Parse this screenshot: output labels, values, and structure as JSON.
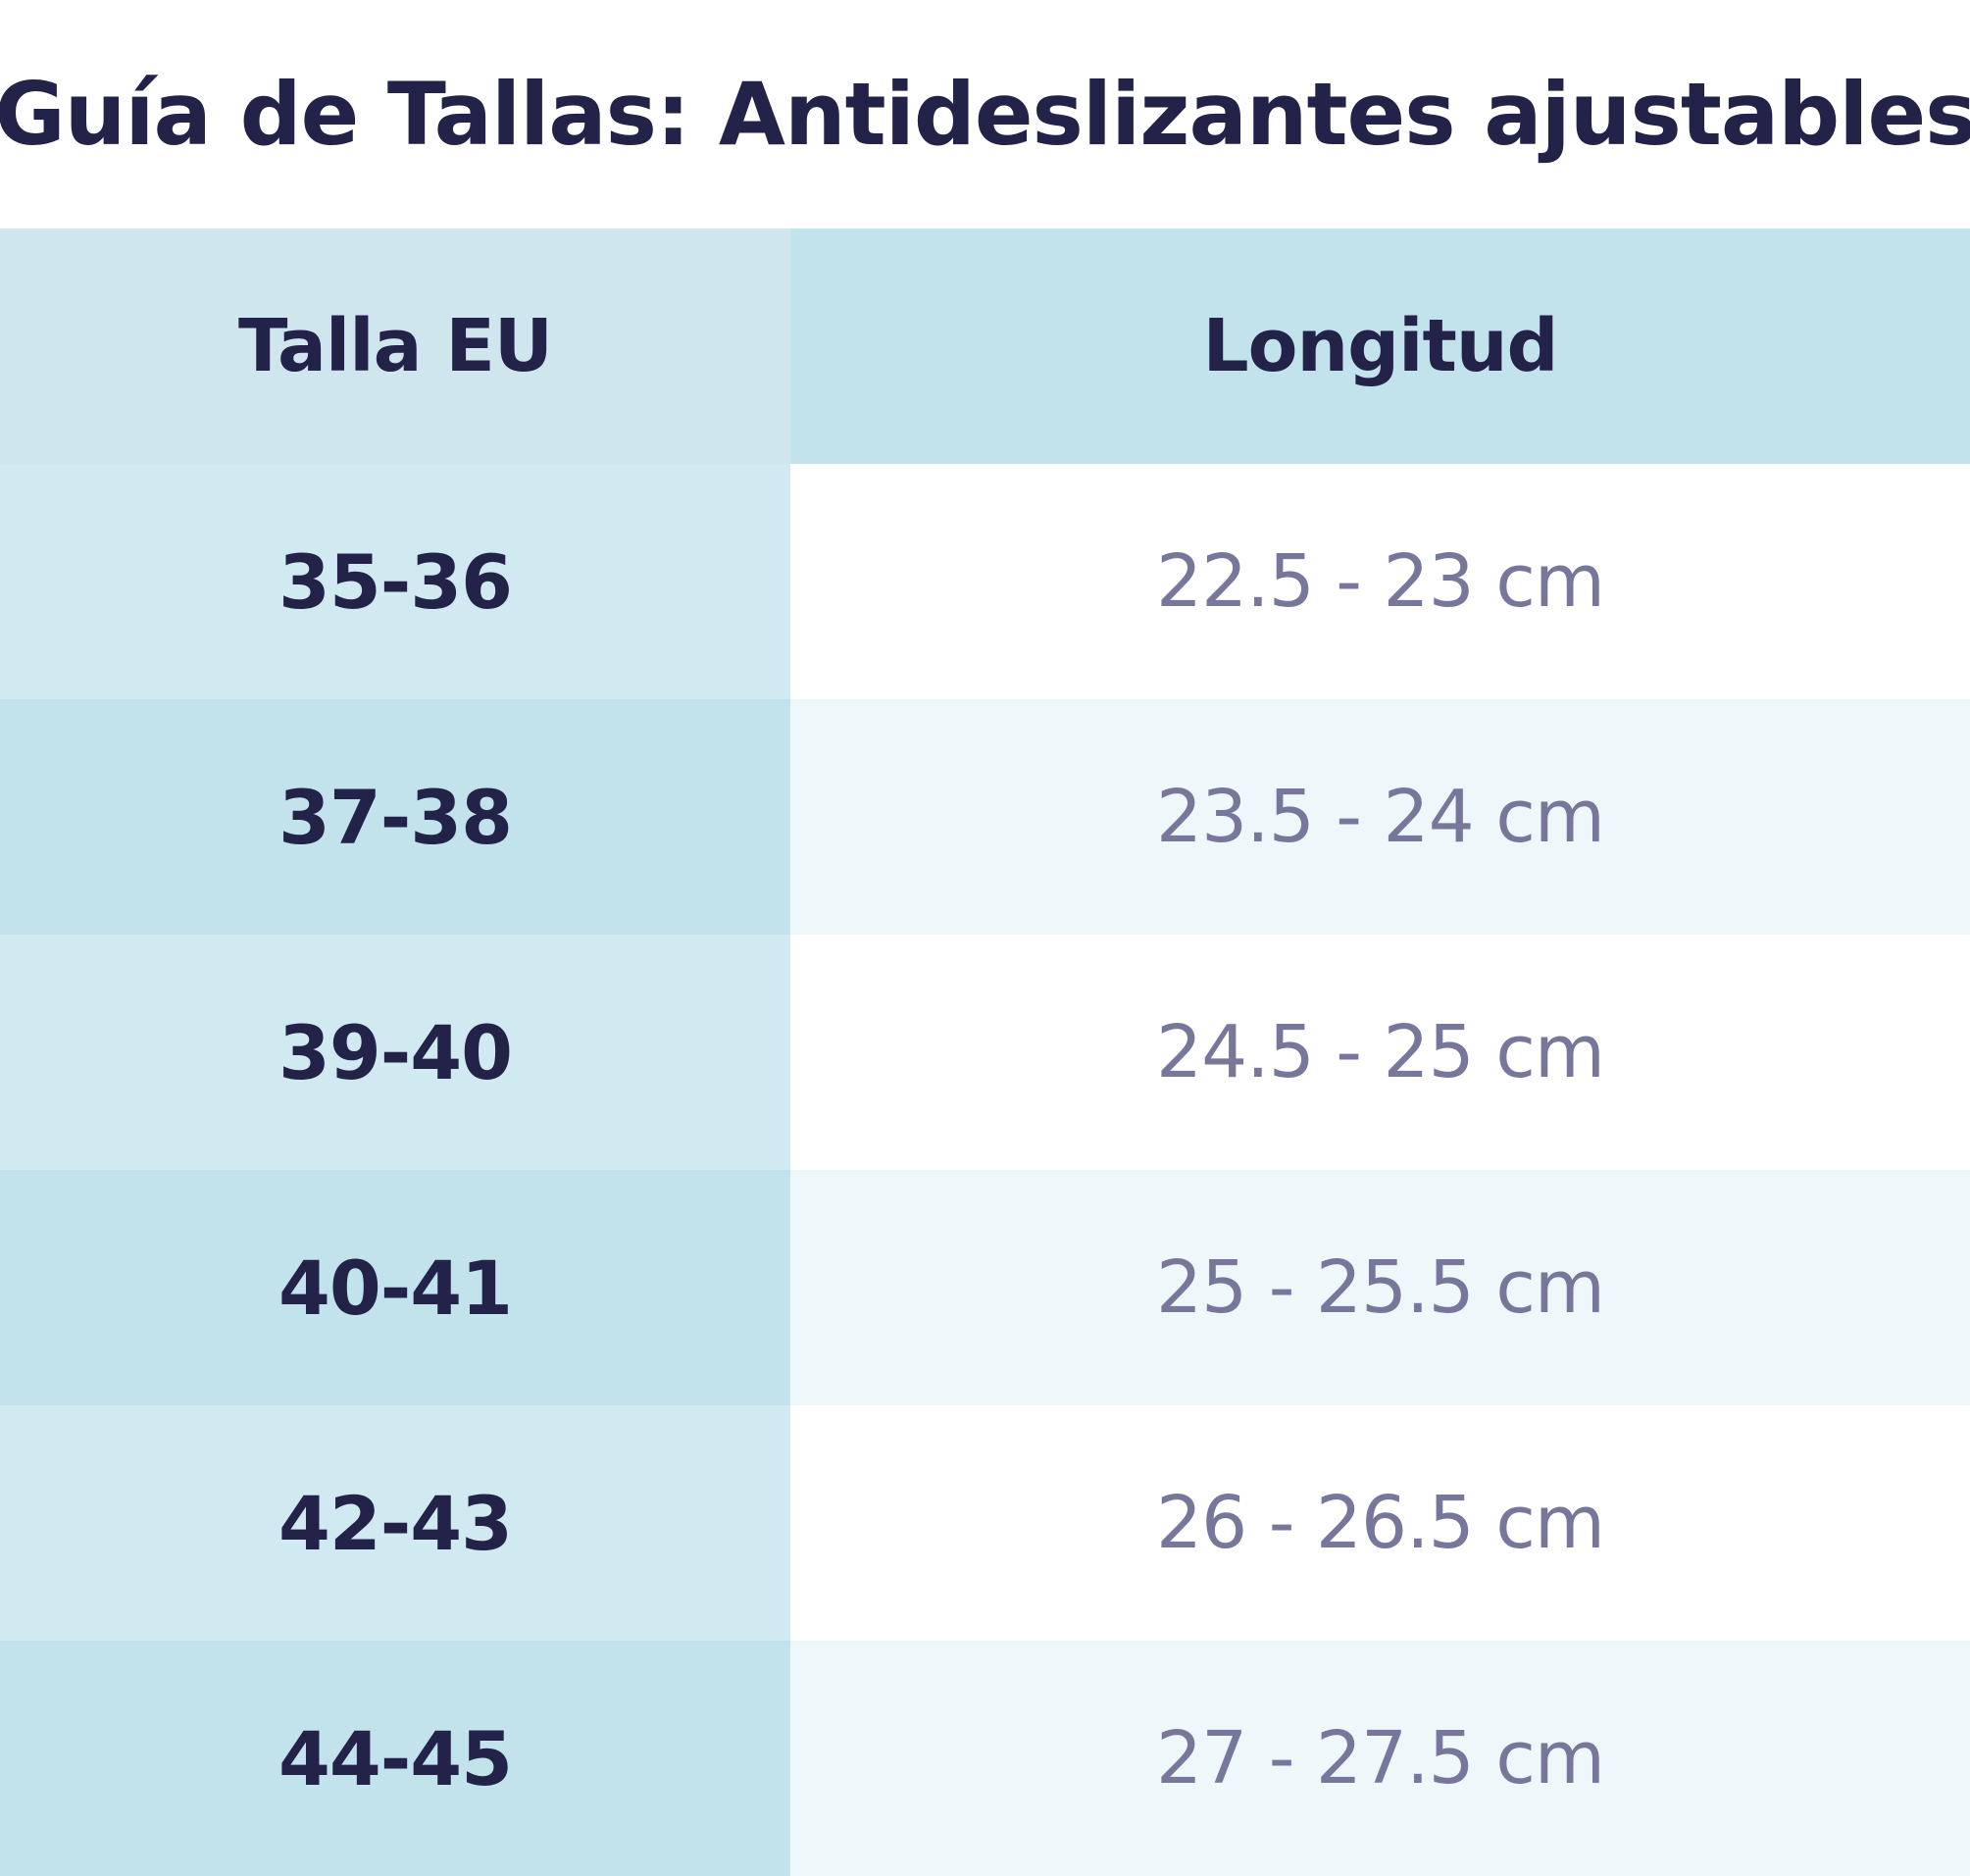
{
  "title": "Guía de Tallas: Antideslizantes ajustables",
  "table": {
    "headers": [
      "Talla EU",
      "Longitud"
    ],
    "rows": [
      {
        "size": "35-36",
        "length": "22.5 - 23 cm"
      },
      {
        "size": "37-38",
        "length": "23.5 - 24 cm"
      },
      {
        "size": "39-40",
        "length": "24.5 - 25 cm"
      },
      {
        "size": "40-41",
        "length": "25 - 25.5 cm"
      },
      {
        "size": "42-43",
        "length": "26 - 26.5 cm"
      },
      {
        "size": "44-45",
        "length": "27 - 27.5 cm"
      }
    ]
  },
  "colors": {
    "title_text": "#23234a",
    "size_text": "#23234a",
    "length_text": "#76779a",
    "header_left_bg": "#cfe6ef",
    "header_right_bg": "#c3e3ec",
    "odd_left_bg": "#d1e9f0",
    "even_left_bg": "#c3e3ec",
    "odd_right_bg": "#ffffff",
    "even_right_bg": "#eef7f9"
  }
}
